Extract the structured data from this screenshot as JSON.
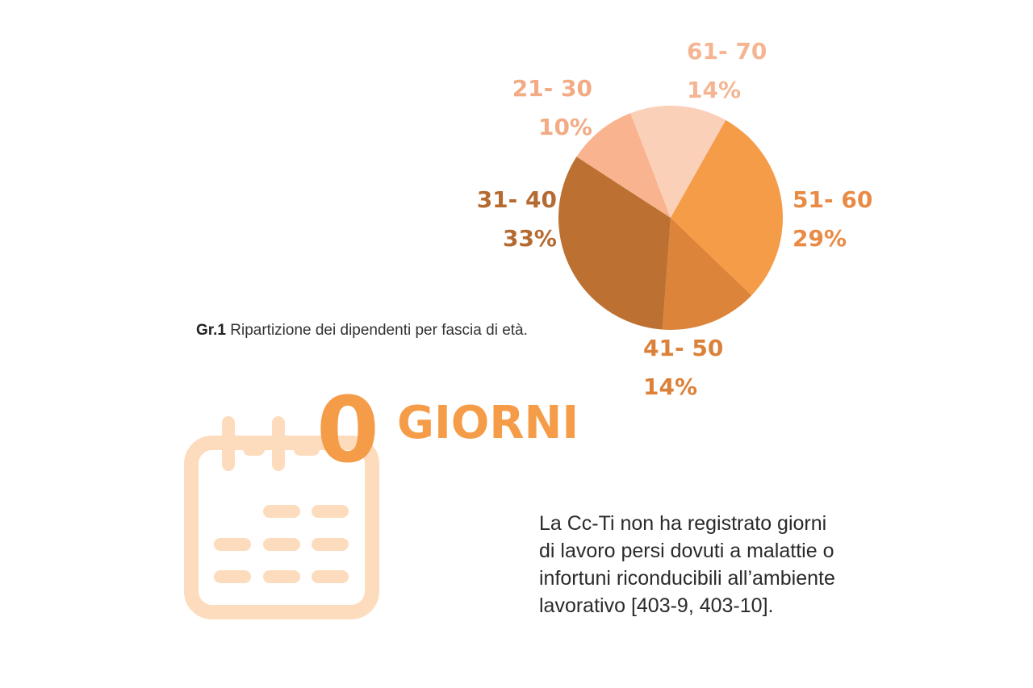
{
  "chart_data": {
    "type": "pie",
    "caption_prefix": "Gr.1",
    "caption": "Ripartizione dei dipendenti per fascia di età.",
    "slices": [
      {
        "label": "61- 70",
        "value": 14,
        "value_label": "14%",
        "color": "#fbd0b9"
      },
      {
        "label": "51- 60",
        "value": 29,
        "value_label": "29%",
        "color": "#f59c48"
      },
      {
        "label": "41- 50",
        "value": 14,
        "value_label": "14%",
        "color": "#dc8439"
      },
      {
        "label": "31- 40",
        "value": 33,
        "value_label": "33%",
        "color": "#bc7133"
      },
      {
        "label": "21- 30",
        "value": 10,
        "value_label": "10%",
        "color": "#f9b48f"
      }
    ],
    "label_colors": [
      "#f5b593",
      "#e98a45",
      "#dc8139",
      "#b56a30",
      "#f2ab85"
    ]
  },
  "stat": {
    "number": "0",
    "unit": "GIORNI",
    "icon": "calendar-icon",
    "icon_color": "#fddcbd",
    "accent_color": "#f59c48"
  },
  "body_text": "La  Cc-Ti non ha registrato giorni\ndi lavoro persi dovuti a malattie o\ninfortuni riconducibili all’ambiente\nlavorativo [403-9, 403-10]."
}
